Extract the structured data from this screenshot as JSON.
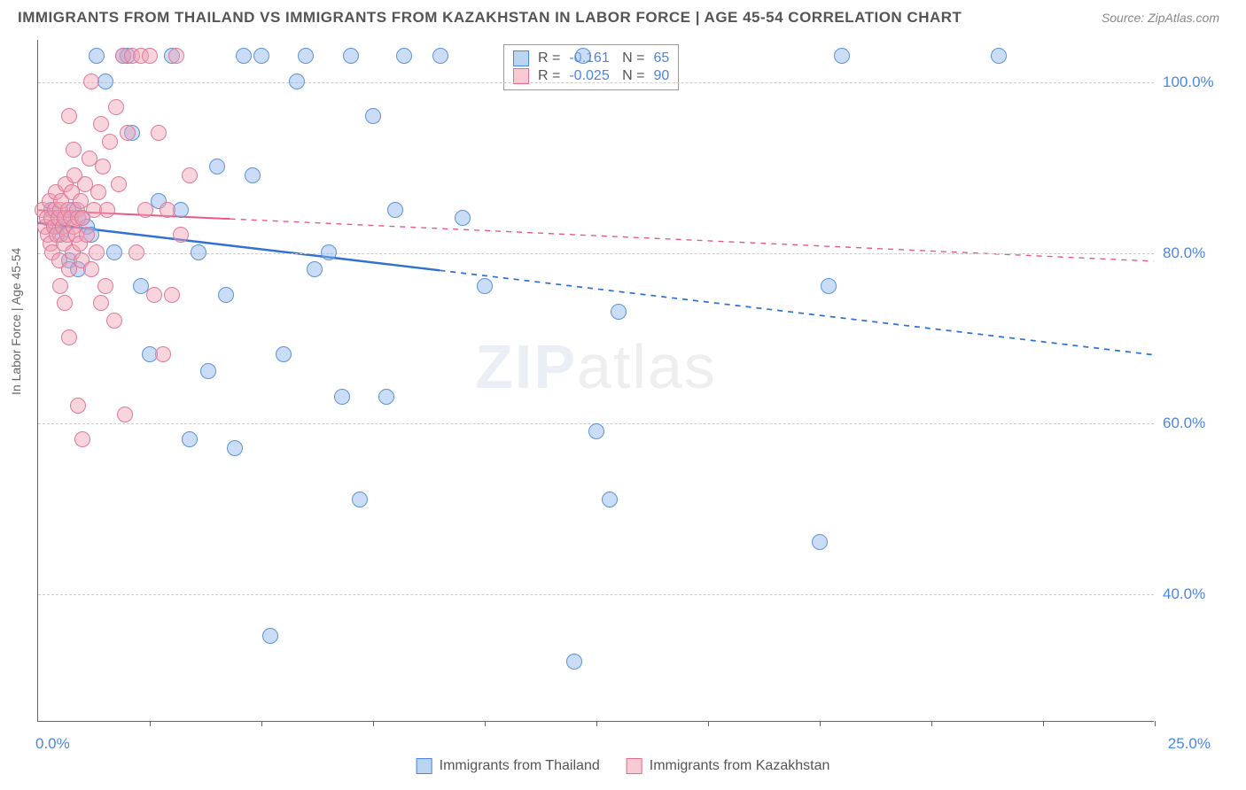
{
  "title": "IMMIGRANTS FROM THAILAND VS IMMIGRANTS FROM KAZAKHSTAN IN LABOR FORCE | AGE 45-54 CORRELATION CHART",
  "source": "Source: ZipAtlas.com",
  "ylabel": "In Labor Force | Age 45-54",
  "watermark_a": "ZIP",
  "watermark_b": "atlas",
  "chart": {
    "type": "scatter",
    "xlim": [
      0,
      25
    ],
    "ylim": [
      25,
      105
    ],
    "x_min_label": "0.0%",
    "x_max_label": "25.0%",
    "y_ticks": [
      40,
      60,
      80,
      100
    ],
    "y_tick_labels": [
      "40.0%",
      "60.0%",
      "80.0%",
      "100.0%"
    ],
    "x_tick_positions": [
      2.5,
      5,
      7.5,
      10,
      12.5,
      15,
      17.5,
      20,
      22.5,
      25
    ],
    "background_color": "#ffffff",
    "grid_color": "#cccccc",
    "point_radius": 9,
    "series": [
      {
        "name": "Immigrants from Thailand",
        "color_fill": "rgba(140,180,235,0.45)",
        "color_stroke": "#5a94d6",
        "R": "-0.161",
        "N": "65",
        "trend": {
          "x1": 0,
          "y1": 83.5,
          "x2": 25,
          "y2": 68,
          "solid_until_x": 9,
          "color": "#2f72d4",
          "width": 2.5
        },
        "points": [
          [
            0.3,
            85
          ],
          [
            0.4,
            83
          ],
          [
            0.5,
            82
          ],
          [
            0.6,
            84
          ],
          [
            0.8,
            85
          ],
          [
            0.7,
            79
          ],
          [
            0.9,
            78
          ],
          [
            1.0,
            84
          ],
          [
            1.1,
            83
          ],
          [
            1.2,
            82
          ],
          [
            1.3,
            103
          ],
          [
            1.5,
            100
          ],
          [
            1.7,
            80
          ],
          [
            1.9,
            103
          ],
          [
            2.0,
            103
          ],
          [
            2.1,
            94
          ],
          [
            2.3,
            76
          ],
          [
            2.5,
            68
          ],
          [
            2.7,
            86
          ],
          [
            3.0,
            103
          ],
          [
            3.2,
            85
          ],
          [
            3.4,
            58
          ],
          [
            3.6,
            80
          ],
          [
            3.8,
            66
          ],
          [
            4.0,
            90
          ],
          [
            4.2,
            75
          ],
          [
            4.4,
            57
          ],
          [
            4.6,
            103
          ],
          [
            4.8,
            89
          ],
          [
            5.0,
            103
          ],
          [
            5.2,
            35
          ],
          [
            5.5,
            68
          ],
          [
            5.8,
            100
          ],
          [
            6.0,
            103
          ],
          [
            6.2,
            78
          ],
          [
            6.5,
            80
          ],
          [
            6.8,
            63
          ],
          [
            7.0,
            103
          ],
          [
            7.2,
            51
          ],
          [
            7.5,
            96
          ],
          [
            7.8,
            63
          ],
          [
            8.0,
            85
          ],
          [
            8.2,
            103
          ],
          [
            9.0,
            103
          ],
          [
            9.5,
            84
          ],
          [
            10.0,
            76
          ],
          [
            12.0,
            32
          ],
          [
            12.2,
            103
          ],
          [
            12.5,
            59
          ],
          [
            12.8,
            51
          ],
          [
            13.0,
            73
          ],
          [
            17.5,
            46
          ],
          [
            17.7,
            76
          ],
          [
            18.0,
            103
          ],
          [
            21.5,
            103
          ]
        ]
      },
      {
        "name": "Immigrants from Kazakhstan",
        "color_fill": "rgba(240,160,180,0.45)",
        "color_stroke": "#e07a9a",
        "R": "-0.025",
        "N": "90",
        "trend": {
          "x1": 0,
          "y1": 85,
          "x2": 25,
          "y2": 79,
          "solid_until_x": 4.3,
          "color": "#e85a86",
          "width": 2
        },
        "points": [
          [
            0.1,
            85
          ],
          [
            0.15,
            83
          ],
          [
            0.2,
            84
          ],
          [
            0.22,
            82
          ],
          [
            0.25,
            86
          ],
          [
            0.28,
            81
          ],
          [
            0.3,
            84
          ],
          [
            0.32,
            80
          ],
          [
            0.35,
            83
          ],
          [
            0.38,
            85
          ],
          [
            0.4,
            87
          ],
          [
            0.42,
            82
          ],
          [
            0.45,
            84
          ],
          [
            0.48,
            79
          ],
          [
            0.5,
            85
          ],
          [
            0.52,
            86
          ],
          [
            0.55,
            83
          ],
          [
            0.58,
            81
          ],
          [
            0.6,
            84
          ],
          [
            0.62,
            88
          ],
          [
            0.65,
            82
          ],
          [
            0.68,
            85
          ],
          [
            0.7,
            78
          ],
          [
            0.73,
            84
          ],
          [
            0.75,
            87
          ],
          [
            0.78,
            80
          ],
          [
            0.8,
            83
          ],
          [
            0.82,
            89
          ],
          [
            0.85,
            82
          ],
          [
            0.88,
            85
          ],
          [
            0.9,
            84
          ],
          [
            0.93,
            81
          ],
          [
            0.95,
            86
          ],
          [
            0.98,
            79
          ],
          [
            1.0,
            84
          ],
          [
            1.05,
            88
          ],
          [
            1.1,
            82
          ],
          [
            1.15,
            91
          ],
          [
            1.2,
            78
          ],
          [
            1.25,
            85
          ],
          [
            1.3,
            80
          ],
          [
            1.35,
            87
          ],
          [
            1.4,
            74
          ],
          [
            1.45,
            90
          ],
          [
            1.5,
            76
          ],
          [
            1.55,
            85
          ],
          [
            1.6,
            93
          ],
          [
            1.7,
            72
          ],
          [
            1.75,
            97
          ],
          [
            1.8,
            88
          ],
          [
            1.9,
            103
          ],
          [
            1.95,
            61
          ],
          [
            2.0,
            94
          ],
          [
            2.1,
            103
          ],
          [
            2.2,
            80
          ],
          [
            2.3,
            103
          ],
          [
            2.4,
            85
          ],
          [
            2.5,
            103
          ],
          [
            2.6,
            75
          ],
          [
            2.7,
            94
          ],
          [
            2.8,
            68
          ],
          [
            2.9,
            85
          ],
          [
            3.0,
            75
          ],
          [
            3.1,
            103
          ],
          [
            3.2,
            82
          ],
          [
            3.4,
            89
          ],
          [
            0.5,
            76
          ],
          [
            0.6,
            74
          ],
          [
            0.7,
            70
          ],
          [
            0.9,
            62
          ],
          [
            1.0,
            58
          ],
          [
            0.8,
            92
          ],
          [
            0.7,
            96
          ],
          [
            1.2,
            100
          ],
          [
            1.4,
            95
          ]
        ]
      }
    ]
  },
  "legend_bottom": {
    "items": [
      "Immigrants from Thailand",
      "Immigrants from Kazakhstan"
    ]
  }
}
